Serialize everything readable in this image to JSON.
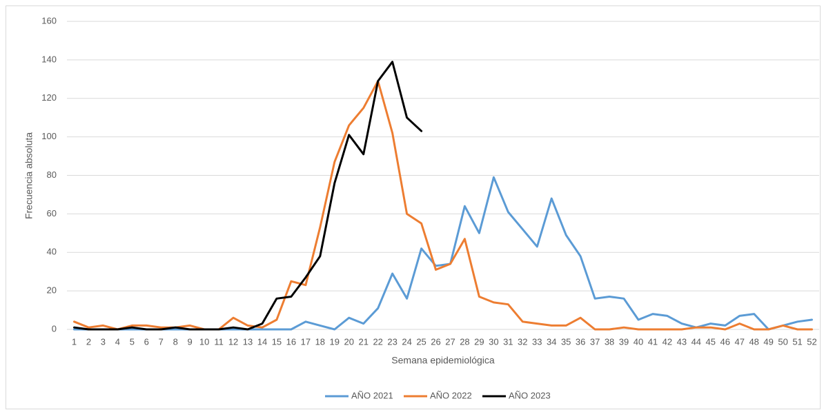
{
  "chart_data": {
    "type": "line",
    "x_label": "Semana epidemiológica",
    "y_label": "Frecuencia absoluta",
    "categories": [
      "1",
      "2",
      "3",
      "4",
      "5",
      "6",
      "7",
      "8",
      "9",
      "10",
      "11",
      "12",
      "13",
      "14",
      "15",
      "16",
      "17",
      "18",
      "19",
      "20",
      "21",
      "22",
      "23",
      "24",
      "25",
      "26",
      "27",
      "28",
      "29",
      "30",
      "31",
      "32",
      "33",
      "34",
      "35",
      "36",
      "37",
      "38",
      "39",
      "40",
      "41",
      "42",
      "43",
      "44",
      "45",
      "46",
      "47",
      "48",
      "49",
      "50",
      "51",
      "52"
    ],
    "series": [
      {
        "name": "AÑO 2021",
        "color": "#5b9bd5",
        "values": [
          0,
          0,
          0,
          0,
          0,
          0,
          0,
          0,
          0,
          0,
          0,
          0,
          0,
          0,
          0,
          0,
          4,
          2,
          0,
          6,
          3,
          11,
          29,
          16,
          42,
          33,
          34,
          64,
          50,
          79,
          61,
          52,
          43,
          68,
          49,
          38,
          16,
          17,
          16,
          5,
          8,
          7,
          3,
          1,
          3,
          2,
          7,
          8,
          0,
          2,
          4,
          5
        ]
      },
      {
        "name": "AÑO 2022",
        "color": "#ed7d31",
        "values": [
          4,
          1,
          2,
          0,
          2,
          2,
          1,
          1,
          2,
          0,
          0,
          6,
          2,
          1,
          5,
          25,
          23,
          53,
          87,
          106,
          115,
          129,
          102,
          60,
          55,
          31,
          34,
          47,
          17,
          14,
          13,
          4,
          3,
          2,
          2,
          6,
          0,
          0,
          1,
          0,
          0,
          0,
          0,
          1,
          1,
          0,
          3,
          0,
          0,
          2,
          0,
          0
        ]
      },
      {
        "name": "AÑO 2023",
        "color": "#000000",
        "values": [
          1,
          0,
          0,
          0,
          1,
          0,
          0,
          1,
          0,
          0,
          0,
          1,
          0,
          3,
          16,
          17,
          27,
          38,
          76,
          101,
          91,
          129,
          139,
          110,
          103,
          null,
          null,
          null,
          null,
          null,
          null,
          null,
          null,
          null,
          null,
          null,
          null,
          null,
          null,
          null,
          null,
          null,
          null,
          null,
          null,
          null,
          null,
          null,
          null,
          null,
          null,
          null
        ]
      }
    ],
    "ylim": [
      0,
      160
    ],
    "yticks": [
      0,
      20,
      40,
      60,
      80,
      100,
      120,
      140,
      160
    ],
    "grid": true,
    "legend": "bottom"
  }
}
